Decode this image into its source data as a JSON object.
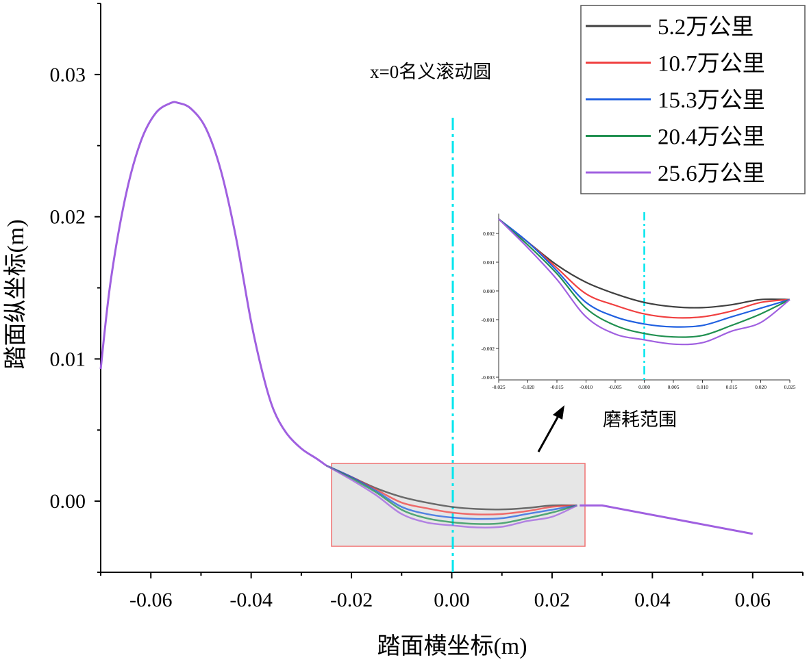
{
  "chart_data": {
    "type": "line",
    "xlabel": "踏面横坐标(m)",
    "ylabel": "踏面纵坐标(m)",
    "xlim": [
      -0.07,
      0.07
    ],
    "ylim": [
      -0.005,
      0.035
    ],
    "xticks": [
      "-0.06",
      "-0.04",
      "-0.02",
      "0.00",
      "0.02",
      "0.04",
      "0.06"
    ],
    "xtick_values": [
      -0.06,
      -0.04,
      -0.02,
      0.0,
      0.02,
      0.04,
      0.06
    ],
    "yticks": [
      "0.00",
      "0.01",
      "0.02",
      "0.03"
    ],
    "ytick_values": [
      0.0,
      0.01,
      0.02,
      0.03
    ],
    "grid": false,
    "legend_position": "top-right",
    "annotations": {
      "reference_line_label": "x=0名义滚动圆",
      "reference_line_x": 0,
      "reference_line_color": "#00e5ee",
      "zoom_label": "磨耗范围",
      "zoom_region": {
        "x": [
          -0.024,
          0.0265
        ],
        "y": [
          -0.0031,
          0.0027
        ]
      }
    },
    "common_profile": {
      "x": [
        -0.07,
        -0.068,
        -0.065,
        -0.062,
        -0.059,
        -0.056,
        -0.0545,
        -0.052,
        -0.049,
        -0.046,
        -0.043,
        -0.04,
        -0.0375,
        -0.0355,
        -0.033,
        -0.03,
        -0.027,
        -0.025
      ],
      "y": [
        0.0093,
        0.0155,
        0.0215,
        0.0253,
        0.0273,
        0.028,
        0.028,
        0.0276,
        0.0262,
        0.0232,
        0.0185,
        0.0126,
        0.0087,
        0.0064,
        0.0048,
        0.0037,
        0.003,
        0.0025
      ]
    },
    "tail_profile": {
      "x": [
        0.0255,
        0.03,
        0.06
      ],
      "y": [
        -0.0003,
        -0.0003,
        -0.0023
      ]
    },
    "x": [
      -0.025,
      -0.02,
      -0.015,
      -0.01,
      -0.005,
      0.0,
      0.005,
      0.01,
      0.015,
      0.02,
      0.025
    ],
    "series": [
      {
        "name": "5.2万公里",
        "color": "#404040",
        "values": [
          0.0025,
          0.0017,
          0.0009,
          0.0003,
          -0.0001,
          -0.0004,
          -0.00055,
          -0.00058,
          -0.00048,
          -0.0003,
          -0.0003
        ]
      },
      {
        "name": "10.7万公里",
        "color": "#f04040",
        "values": [
          0.0025,
          0.0017,
          0.0008,
          -0.0001,
          -0.0005,
          -0.0008,
          -0.00093,
          -0.0009,
          -0.0007,
          -0.0004,
          -0.0003
        ]
      },
      {
        "name": "15.3万公里",
        "color": "#2060e0",
        "values": [
          0.0025,
          0.0017,
          0.0007,
          -0.0004,
          -0.0009,
          -0.00115,
          -0.00125,
          -0.0012,
          -0.0009,
          -0.0006,
          -0.0003
        ]
      },
      {
        "name": "20.4万公里",
        "color": "#209050",
        "values": [
          0.0025,
          0.0016,
          0.0006,
          -0.0006,
          -0.0012,
          -0.00148,
          -0.0016,
          -0.00155,
          -0.0012,
          -0.0008,
          -0.0003
        ]
      },
      {
        "name": "25.6万公里",
        "color": "#a060e0",
        "values": [
          0.0025,
          0.0015,
          0.0004,
          -0.0009,
          -0.0015,
          -0.0017,
          -0.00185,
          -0.0018,
          -0.0014,
          -0.0011,
          -0.0003
        ]
      }
    ],
    "inset": {
      "xlim": [
        -0.025,
        0.025
      ],
      "ylim": [
        -0.003,
        0.0025
      ],
      "xticks": [
        "-0.025",
        "-0.020",
        "-0.015",
        "-0.010",
        "-0.005",
        "0.000",
        "0.005",
        "0.010",
        "0.015",
        "0.020",
        "0.025"
      ],
      "xtick_values": [
        -0.025,
        -0.02,
        -0.015,
        -0.01,
        -0.005,
        0.0,
        0.005,
        0.01,
        0.015,
        0.02,
        0.025
      ],
      "yticks": [
        "0.002",
        "0.001",
        "0.000",
        "-0.001",
        "-0.002",
        "-0.003"
      ],
      "ytick_values": [
        0.002,
        0.001,
        0.0,
        -0.001,
        -0.002,
        -0.003
      ]
    }
  }
}
